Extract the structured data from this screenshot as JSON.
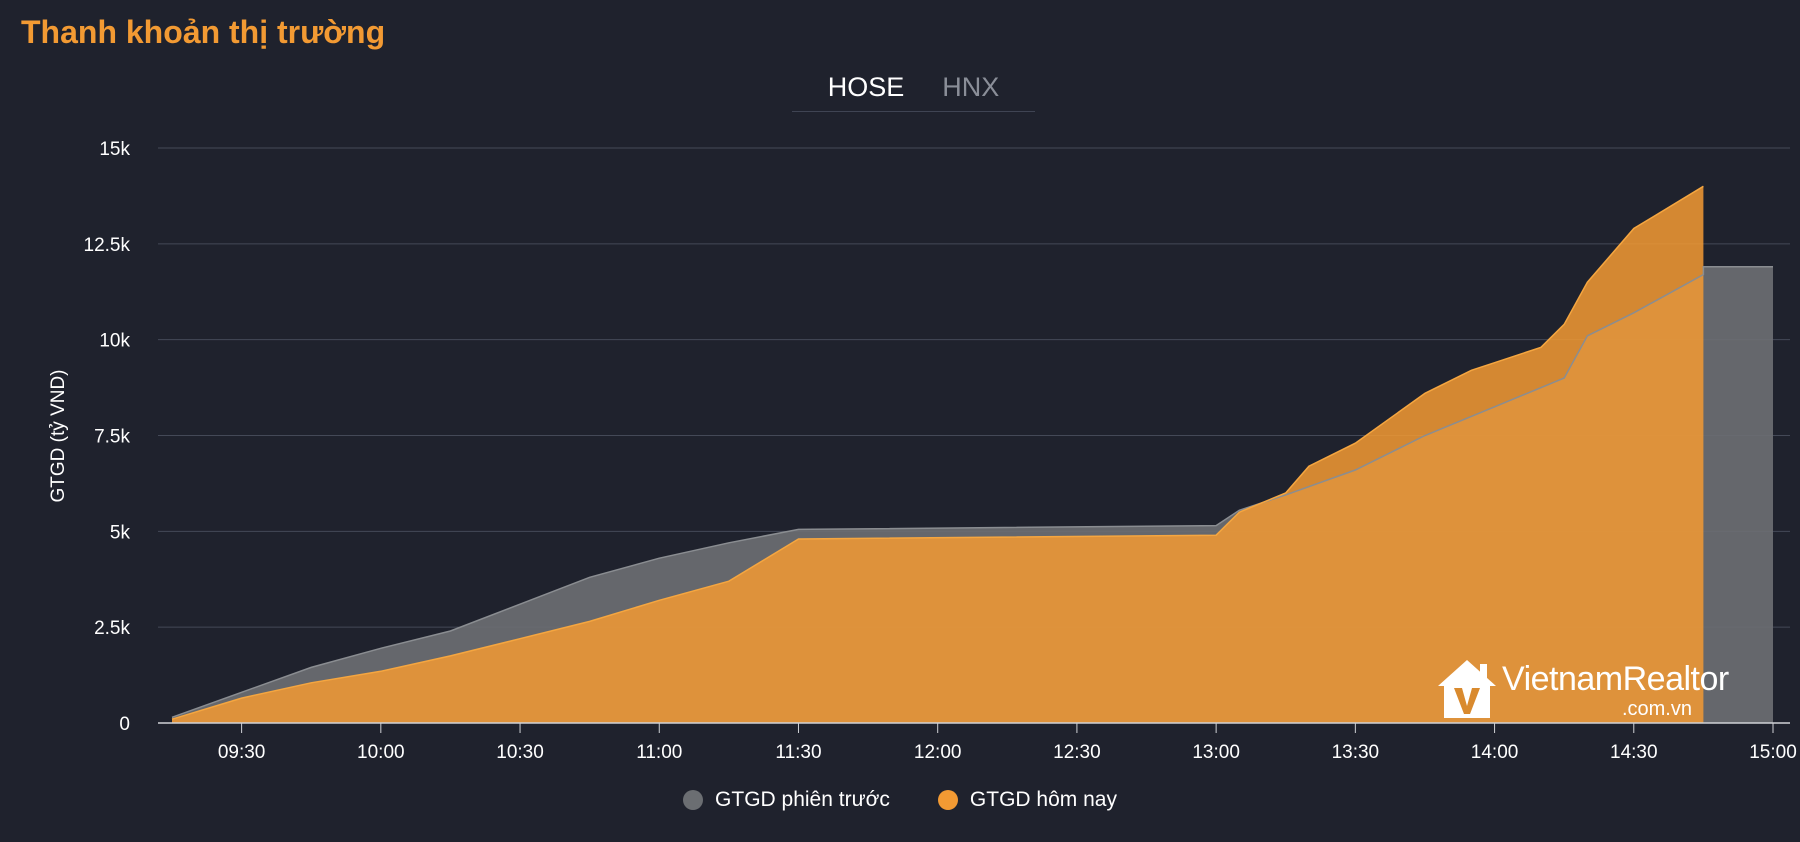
{
  "page": {
    "title": "Thanh khoản thị trường",
    "tabs": [
      {
        "label": "HOSE",
        "active": true
      },
      {
        "label": "HNX",
        "active": false
      }
    ],
    "watermark": {
      "brand": "VietnamRealtor",
      "domain": ".com.vn"
    }
  },
  "chart_data": {
    "type": "area",
    "ylabel": "GTGD (tỷ VND)",
    "xlabel": "",
    "ylim": [
      0,
      15000
    ],
    "xlim": [
      "09:15",
      "15:00"
    ],
    "yticks": [
      {
        "value": 0,
        "label": "0"
      },
      {
        "value": 2500,
        "label": "2.5k"
      },
      {
        "value": 5000,
        "label": "5k"
      },
      {
        "value": 7500,
        "label": "7.5k"
      },
      {
        "value": 10000,
        "label": "10k"
      },
      {
        "value": 12500,
        "label": "12.5k"
      },
      {
        "value": 15000,
        "label": "15k"
      }
    ],
    "xticks": [
      "09:30",
      "10:00",
      "10:30",
      "11:00",
      "11:30",
      "12:00",
      "12:30",
      "13:00",
      "13:30",
      "14:00",
      "14:30",
      "15:00"
    ],
    "grid": true,
    "legend_position": "bottom",
    "series": [
      {
        "name": "GTGD phiên trước",
        "color": "#6b6e72",
        "x": [
          "09:15",
          "09:30",
          "09:45",
          "10:00",
          "10:15",
          "10:30",
          "10:45",
          "11:00",
          "11:15",
          "11:30",
          "13:00",
          "13:05",
          "13:15",
          "13:30",
          "13:45",
          "14:00",
          "14:15",
          "14:20",
          "14:30",
          "14:45",
          "14:45",
          "15:00"
        ],
        "values": [
          150,
          800,
          1450,
          1950,
          2400,
          3100,
          3800,
          4300,
          4700,
          5050,
          5150,
          5550,
          5950,
          6600,
          7500,
          8250,
          9000,
          10100,
          10700,
          11700,
          11900,
          11900
        ]
      },
      {
        "name": "GTGD hôm nay",
        "color": "#f29a33",
        "x": [
          "09:15",
          "09:30",
          "09:45",
          "10:00",
          "10:15",
          "10:30",
          "10:45",
          "11:00",
          "11:15",
          "11:30",
          "13:00",
          "13:05",
          "13:15",
          "13:20",
          "13:30",
          "13:45",
          "13:55",
          "14:00",
          "14:10",
          "14:15",
          "14:20",
          "14:30",
          "14:45"
        ],
        "values": [
          100,
          650,
          1050,
          1350,
          1750,
          2200,
          2650,
          3200,
          3700,
          4800,
          4900,
          5500,
          6000,
          6700,
          7300,
          8600,
          9200,
          9400,
          9800,
          10400,
          11500,
          12900,
          14000
        ]
      }
    ]
  }
}
